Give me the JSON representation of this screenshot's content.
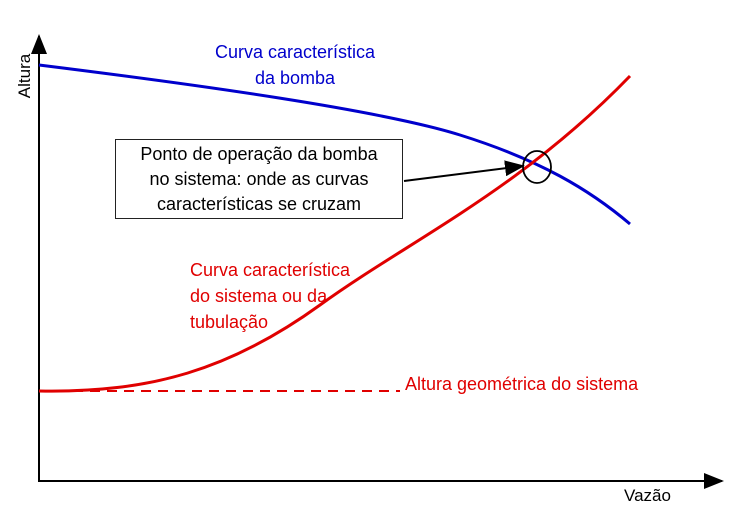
{
  "axes": {
    "y_label": "Altura",
    "x_label": "Vazão"
  },
  "pump_curve": {
    "label_lines": [
      "Curva característica",
      "da bomba"
    ],
    "color": "#0000cc"
  },
  "system_curve": {
    "label_lines": [
      "Curva característica",
      "do sistema ou da",
      "tubulação"
    ],
    "color": "#e00000"
  },
  "static_head": {
    "label": "Altura geométrica do sistema",
    "color": "#e00000",
    "line_style": "dashed"
  },
  "operating_point": {
    "label_lines": [
      "Ponto de operação da bomba",
      "no sistema: onde as curvas",
      "características se cruzam"
    ]
  }
}
